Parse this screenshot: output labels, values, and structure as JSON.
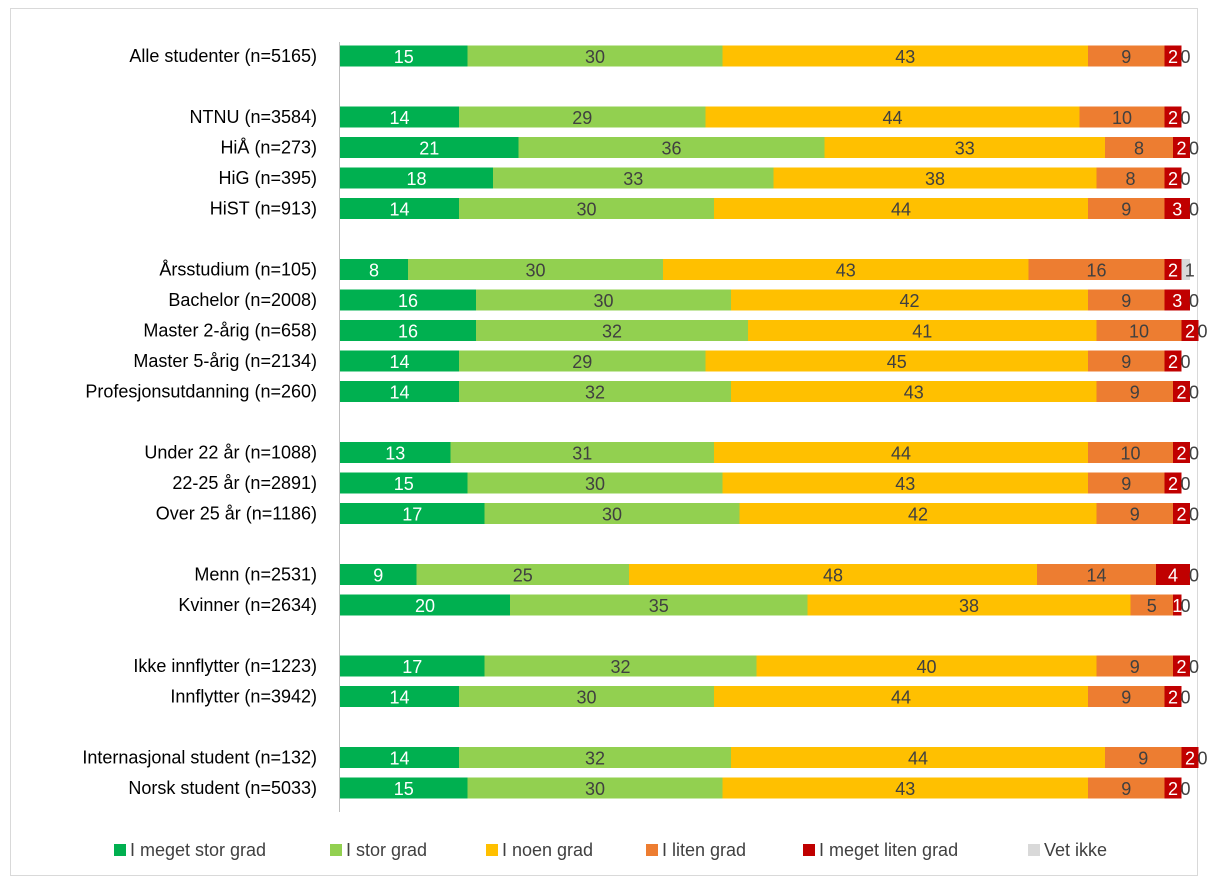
{
  "chart_data": {
    "type": "bar",
    "orientation": "horizontal",
    "stacked": true,
    "percent_stacked": true,
    "xlim": [
      0,
      100
    ],
    "grid": false,
    "legend_position": "bottom",
    "legend": [
      {
        "name": "I meget stor grad",
        "color": "#00b050"
      },
      {
        "name": "I stor grad",
        "color": "#92d050"
      },
      {
        "name": "I noen grad",
        "color": "#ffc000"
      },
      {
        "name": "I liten grad",
        "color": "#ed7d31"
      },
      {
        "name": "I meget liten grad",
        "color": "#c00000"
      },
      {
        "name": "Vet ikke",
        "color": "#d9d9d9"
      }
    ],
    "groups": [
      {
        "rows": [
          {
            "label": "Alle studenter (n=5165)",
            "values": [
              15,
              30,
              43,
              9,
              2,
              0
            ]
          }
        ]
      },
      {
        "rows": [
          {
            "label": "NTNU (n=3584)",
            "values": [
              14,
              29,
              44,
              10,
              2,
              0
            ]
          },
          {
            "label": "HiÅ (n=273)",
            "values": [
              21,
              36,
              33,
              8,
              2,
              0
            ]
          },
          {
            "label": "HiG (n=395)",
            "values": [
              18,
              33,
              38,
              8,
              2,
              0
            ]
          },
          {
            "label": "HiST (n=913)",
            "values": [
              14,
              30,
              44,
              9,
              3,
              0
            ]
          }
        ]
      },
      {
        "rows": [
          {
            "label": "Årsstudium (n=105)",
            "values": [
              8,
              30,
              43,
              16,
              2,
              1
            ]
          },
          {
            "label": "Bachelor (n=2008)",
            "values": [
              16,
              30,
              42,
              9,
              3,
              0
            ]
          },
          {
            "label": "Master 2-årig (n=658)",
            "values": [
              16,
              32,
              41,
              10,
              2,
              0
            ]
          },
          {
            "label": "Master 5-årig (n=2134)",
            "values": [
              14,
              29,
              45,
              9,
              2,
              0
            ]
          },
          {
            "label": "Profesjonsutdanning (n=260)",
            "values": [
              14,
              32,
              43,
              9,
              2,
              0
            ]
          }
        ]
      },
      {
        "rows": [
          {
            "label": "Under 22 år (n=1088)",
            "values": [
              13,
              31,
              44,
              10,
              2,
              0
            ]
          },
          {
            "label": "22-25 år (n=2891)",
            "values": [
              15,
              30,
              43,
              9,
              2,
              0
            ]
          },
          {
            "label": "Over 25 år (n=1186)",
            "values": [
              17,
              30,
              42,
              9,
              2,
              0
            ]
          }
        ]
      },
      {
        "rows": [
          {
            "label": "Menn (n=2531)",
            "values": [
              9,
              25,
              48,
              14,
              4,
              0
            ]
          },
          {
            "label": "Kvinner (n=2634)",
            "values": [
              20,
              35,
              38,
              5,
              1,
              0
            ]
          }
        ]
      },
      {
        "rows": [
          {
            "label": "Ikke innflytter (n=1223)",
            "values": [
              17,
              32,
              40,
              9,
              2,
              0
            ]
          },
          {
            "label": "Innflytter (n=3942)",
            "values": [
              14,
              30,
              44,
              9,
              2,
              0
            ]
          }
        ]
      },
      {
        "rows": [
          {
            "label": "Internasjonal student (n=132)",
            "values": [
              14,
              32,
              44,
              9,
              2,
              0
            ]
          },
          {
            "label": "Norsk student (n=5033)",
            "values": [
              15,
              30,
              43,
              9,
              2,
              0
            ]
          }
        ]
      }
    ]
  }
}
